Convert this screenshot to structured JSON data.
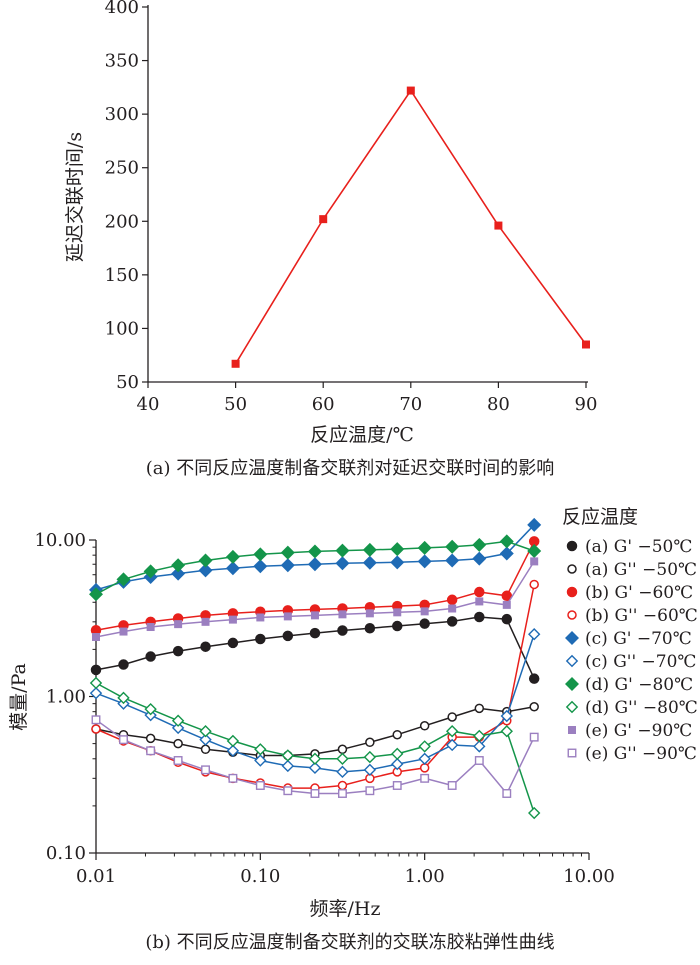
{
  "chart_data": [
    {
      "type": "line",
      "x": [
        50,
        60,
        70,
        80,
        90
      ],
      "series": [
        {
          "values": [
            67,
            202,
            322,
            196,
            85
          ],
          "color": "#e8201c",
          "marker": "filled-square"
        }
      ],
      "xlabel": "反应温度/℃",
      "ylabel": "延迟交联时间/s",
      "xlim": [
        40,
        90
      ],
      "ylim": [
        50,
        400
      ],
      "xticks": [
        "40",
        "50",
        "60",
        "70",
        "80",
        "90"
      ],
      "yticks": [
        "50",
        "100",
        "150",
        "200",
        "250",
        "300",
        "350",
        "400"
      ],
      "caption": "(a) 不同反应温度制备交联剂对延迟交联时间的影响",
      "grid": false
    },
    {
      "type": "line",
      "xscale": "log",
      "yscale": "log",
      "x": [
        0.01,
        0.0147,
        0.0215,
        0.0316,
        0.0464,
        0.0681,
        0.1,
        0.147,
        0.215,
        0.316,
        0.464,
        0.681,
        1.0,
        1.47,
        2.15,
        3.16,
        4.64
      ],
      "series": [
        {
          "name": "(a) G' −50℃",
          "color": "#231f20",
          "marker": "filled-circle",
          "values": [
            1.48,
            1.6,
            1.8,
            1.95,
            2.08,
            2.2,
            2.33,
            2.44,
            2.54,
            2.64,
            2.73,
            2.82,
            2.92,
            3.02,
            3.22,
            3.12,
            1.3
          ]
        },
        {
          "name": "(a) G'' −50℃",
          "color": "#231f20",
          "marker": "open-circle",
          "values": [
            0.62,
            0.57,
            0.54,
            0.5,
            0.46,
            0.44,
            0.42,
            0.42,
            0.43,
            0.46,
            0.51,
            0.57,
            0.65,
            0.74,
            0.84,
            0.8,
            0.86
          ]
        },
        {
          "name": "(b) G' −60℃",
          "color": "#e8201c",
          "marker": "filled-circle",
          "values": [
            2.65,
            2.85,
            3.0,
            3.15,
            3.3,
            3.4,
            3.48,
            3.55,
            3.6,
            3.65,
            3.72,
            3.78,
            3.85,
            4.15,
            4.65,
            4.4,
            9.8
          ]
        },
        {
          "name": "(b) G'' −60℃",
          "color": "#e8201c",
          "marker": "open-circle",
          "values": [
            0.62,
            0.52,
            0.45,
            0.38,
            0.33,
            0.3,
            0.28,
            0.26,
            0.26,
            0.27,
            0.3,
            0.33,
            0.35,
            0.55,
            0.55,
            0.7,
            5.2
          ]
        },
        {
          "name": "(c) G' −70℃",
          "color": "#1f6bb5",
          "marker": "filled-diamond",
          "values": [
            4.8,
            5.4,
            5.8,
            6.1,
            6.4,
            6.6,
            6.8,
            6.9,
            7.0,
            7.1,
            7.15,
            7.2,
            7.3,
            7.4,
            7.6,
            8.2,
            12.5
          ]
        },
        {
          "name": "(c) G'' −70℃",
          "color": "#1f6bb5",
          "marker": "open-diamond",
          "values": [
            1.05,
            0.9,
            0.76,
            0.63,
            0.53,
            0.45,
            0.39,
            0.36,
            0.35,
            0.33,
            0.34,
            0.37,
            0.4,
            0.49,
            0.48,
            0.75,
            2.5
          ]
        },
        {
          "name": "(d) G' −80℃",
          "color": "#14954a",
          "marker": "filled-diamond",
          "values": [
            4.5,
            5.6,
            6.3,
            6.9,
            7.4,
            7.8,
            8.1,
            8.3,
            8.45,
            8.55,
            8.65,
            8.75,
            8.9,
            9.05,
            9.3,
            9.8,
            8.5
          ]
        },
        {
          "name": "(d) G'' −80℃",
          "color": "#14954a",
          "marker": "open-diamond",
          "values": [
            1.22,
            0.98,
            0.83,
            0.7,
            0.6,
            0.52,
            0.46,
            0.42,
            0.4,
            0.4,
            0.41,
            0.43,
            0.48,
            0.6,
            0.56,
            0.6,
            0.18
          ]
        },
        {
          "name": "(e) G' −90℃",
          "color": "#9b7fc0",
          "marker": "filled-square",
          "values": [
            2.4,
            2.6,
            2.78,
            2.9,
            3.0,
            3.1,
            3.2,
            3.25,
            3.3,
            3.35,
            3.4,
            3.45,
            3.5,
            3.65,
            4.05,
            3.85,
            7.3
          ]
        },
        {
          "name": "(e) G'' −90℃",
          "color": "#9b7fc0",
          "marker": "open-square",
          "values": [
            0.71,
            0.53,
            0.45,
            0.39,
            0.34,
            0.3,
            0.27,
            0.25,
            0.24,
            0.24,
            0.25,
            0.27,
            0.3,
            0.27,
            0.39,
            0.24,
            0.55
          ]
        }
      ],
      "xlabel": "频率/Hz",
      "ylabel": "模量/Pa",
      "xlim": [
        0.01,
        10
      ],
      "ylim": [
        0.1,
        10
      ],
      "xticks": [
        "0.01",
        "0.10",
        "1.00",
        "10.00"
      ],
      "yticks": [
        "0.10",
        "1.00",
        "10.00"
      ],
      "legend_title": "反应温度",
      "legend_position": "right",
      "caption": "(b) 不同反应温度制备交联剂的交联冻胶粘弹性曲线",
      "grid": false
    }
  ]
}
